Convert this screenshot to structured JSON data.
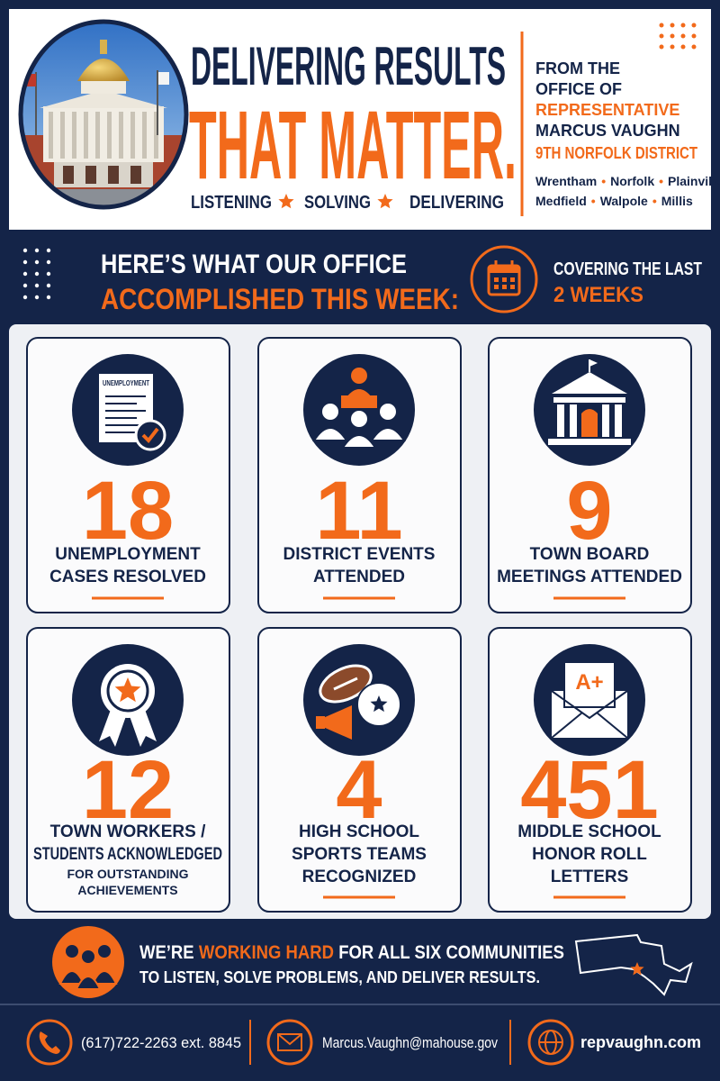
{
  "header": {
    "title_line1": "DELIVERING RESULTS",
    "title_line2": "THAT MATTER.",
    "tagline": [
      "LISTENING",
      "SOLVING",
      "DELIVERING"
    ],
    "office": [
      "FROM THE",
      "OFFICE OF",
      "REPRESENTATIVE",
      "MARCUS VAUGHN",
      "9TH NORFOLK DISTRICT"
    ],
    "towns": [
      [
        "Wrentham",
        "Norfolk",
        "Plainville"
      ],
      [
        "Medfield",
        "Walpole",
        "Millis"
      ]
    ]
  },
  "banner": {
    "heading_line1": "HERE’S WHAT OUR OFFICE",
    "heading_line2": "ACCOMPLISHED THIS WEEK:",
    "period_line1": "COVERING THE LAST",
    "period_line2": "2 WEEKS"
  },
  "stats": [
    {
      "icon_text": "UNEMPLOYMENT",
      "number": 18,
      "label": [
        "UNEMPLOYMENT",
        "CASES RESOLVED"
      ]
    },
    {
      "number": 11,
      "label": [
        "DISTRICT EVENTS",
        "ATTENDED"
      ]
    },
    {
      "number": 9,
      "label": [
        "TOWN BOARD",
        "MEETINGS ATTENDED"
      ]
    },
    {
      "number": 12,
      "label": [
        "TOWN WORKERS /",
        "STUDENTS ACKNOWLEDGED"
      ],
      "note": [
        "FOR OUTSTANDING",
        "ACHIEVEMENTS"
      ]
    },
    {
      "number": 4,
      "label": [
        "HIGH SCHOOL",
        "SPORTS TEAMS",
        "RECOGNIZED"
      ]
    },
    {
      "icon_text": "A+",
      "number": 451,
      "label": [
        "MIDDLE SCHOOL",
        "HONOR ROLL",
        "LETTERS"
      ]
    }
  ],
  "closing": {
    "line1": [
      "WE’RE",
      "WORKING HARD",
      "FOR ALL SIX COMMUNITIES"
    ],
    "line2": "TO LISTEN, SOLVE PROBLEMS, AND DELIVER RESULTS."
  },
  "contact": {
    "phone": "(617)722-2263 ext. 8845",
    "email": "Marcus.Vaughn@mahouse.gov",
    "website": "repvaughn.com"
  }
}
